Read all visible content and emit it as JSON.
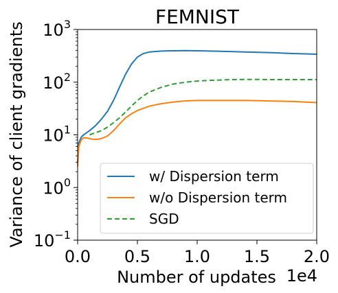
{
  "chart_data": {
    "type": "line",
    "title": "FEMNIST",
    "xlabel": "Number of updates",
    "ylabel": "Variance of client gradients",
    "x_offset_label": "1e4",
    "xlim": [
      0,
      2.0
    ],
    "ylim": [
      0.1,
      1000
    ],
    "yscale": "log",
    "x_ticks": [
      0.0,
      0.5,
      1.0,
      1.5,
      2.0
    ],
    "x_tick_labels": [
      "0.0",
      "0.5",
      "1.0",
      "1.5",
      "2.0"
    ],
    "y_ticks": [
      0.1,
      1,
      10,
      100,
      1000
    ],
    "y_tick_labels": [
      {
        "base": "10",
        "exp": "−1"
      },
      {
        "base": "10",
        "exp": "0"
      },
      {
        "base": "10",
        "exp": "1"
      },
      {
        "base": "10",
        "exp": "2"
      },
      {
        "base": "10",
        "exp": "3"
      }
    ],
    "grid": false,
    "legend_position": "lower-right",
    "series": [
      {
        "name": "w/ Dispersion term",
        "color": "#1f77b4",
        "style": "solid",
        "x": [
          0.0,
          0.01,
          0.03,
          0.05,
          0.1,
          0.15,
          0.2,
          0.25,
          0.3,
          0.35,
          0.4,
          0.45,
          0.5,
          0.55,
          0.6,
          0.7,
          0.8,
          0.9,
          1.0,
          1.1,
          1.2,
          1.4,
          1.6,
          1.8,
          2.0
        ],
        "y": [
          3,
          7,
          9,
          10,
          12,
          15,
          20,
          28,
          45,
          80,
          140,
          220,
          300,
          350,
          375,
          390,
          395,
          398,
          395,
          390,
          385,
          375,
          365,
          350,
          340
        ]
      },
      {
        "name": "w/o Dispersion term",
        "color": "#ff7f0e",
        "style": "solid",
        "x": [
          0.0,
          0.01,
          0.03,
          0.05,
          0.08,
          0.12,
          0.16,
          0.2,
          0.25,
          0.3,
          0.35,
          0.4,
          0.45,
          0.5,
          0.6,
          0.7,
          0.8,
          0.9,
          1.0,
          1.2,
          1.4,
          1.6,
          1.8,
          2.0
        ],
        "y": [
          2.5,
          6,
          8,
          8.8,
          8.7,
          8.3,
          8.2,
          8.5,
          9.5,
          12,
          16,
          21,
          25,
          29,
          35,
          39,
          42,
          44,
          45,
          45,
          45,
          44,
          43,
          41
        ]
      },
      {
        "name": "SGD",
        "color": "#2ca02c",
        "style": "dashed",
        "x": [
          0.1,
          0.15,
          0.2,
          0.25,
          0.3,
          0.35,
          0.4,
          0.45,
          0.5,
          0.55,
          0.6,
          0.7,
          0.8,
          0.9,
          1.0,
          1.1,
          1.2,
          1.3,
          1.4,
          1.5,
          1.6,
          1.8,
          2.0
        ],
        "y": [
          10,
          11,
          12,
          14,
          17,
          21,
          27,
          35,
          45,
          55,
          65,
          80,
          92,
          100,
          105,
          108,
          110,
          112,
          113,
          113,
          112,
          112,
          112
        ]
      }
    ]
  }
}
